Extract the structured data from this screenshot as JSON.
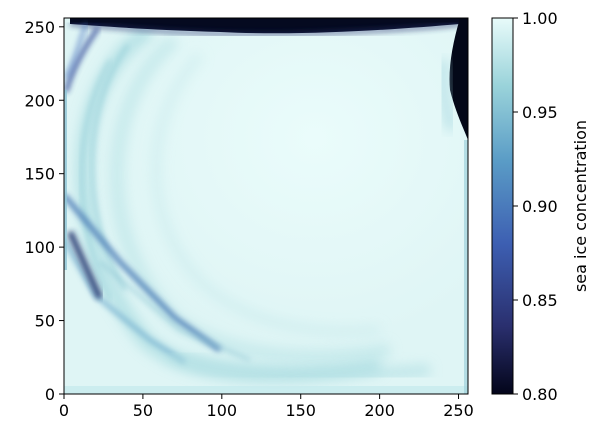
{
  "chart_data": {
    "type": "heatmap",
    "title": "",
    "xlabel": "",
    "ylabel": "",
    "xlim": [
      0,
      256
    ],
    "ylim": [
      0,
      256
    ],
    "x_ticks": [
      0,
      50,
      100,
      150,
      200,
      250
    ],
    "y_ticks": [
      0,
      50,
      100,
      150,
      200,
      250
    ],
    "colorbar": {
      "label": "sea ice concentration",
      "range": [
        0.8,
        1.0
      ],
      "ticks": [
        "0.80",
        "0.85",
        "0.90",
        "0.95",
        "1.00"
      ],
      "colormap": [
        "#03051a",
        "#2a2f6e",
        "#3d5fb2",
        "#5a9cc6",
        "#9ad3da",
        "#e8fbfa"
      ]
    },
    "field_description_values": {
      "background": 0.99,
      "dark_top_band": 0.8,
      "dark_right_edge_top": 0.8,
      "dark_left_upper_edge": 0.88,
      "left_lower_diagonal_band": 0.87,
      "arc_bands": 0.95,
      "bottom_arc_band": 0.96
    }
  }
}
